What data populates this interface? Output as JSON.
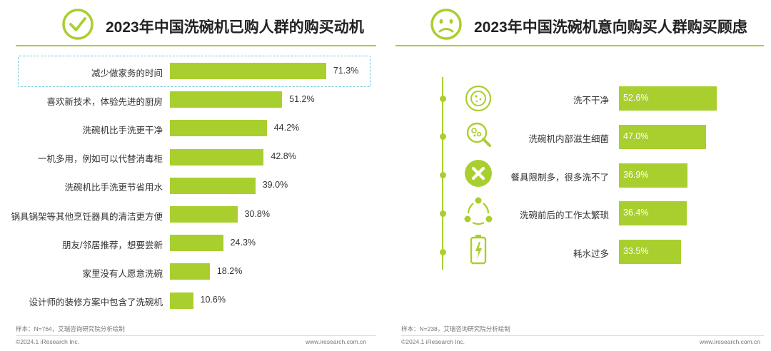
{
  "left": {
    "title": "2023年中国洗碗机已购人群的购买动机",
    "icon": "checkmark-circle-icon",
    "note": "样本：N=764，艾瑞咨询研究院分析绘制",
    "footer_copyright": "©2024.1 iResearch Inc.",
    "footer_url": "www.iresearch.com.cn"
  },
  "right": {
    "title": "2023年中国洗碗机意向购买人群购买顾虑",
    "icon": "sad-face-icon",
    "note": "样本：N=238，艾瑞咨询研究院分析绘制",
    "footer_copyright": "©2024.1 iResearch Inc.",
    "footer_url": "www.iresearch.com.cn",
    "item_icons": [
      "dirty-plate-icon",
      "bacteria-magnifier-icon",
      "cross-circle-icon",
      "cycle-arrows-icon",
      "battery-icon"
    ]
  },
  "colors": {
    "accent": "#a9cf2e",
    "highlight": "#6cc4dd"
  },
  "chart_data": [
    {
      "type": "bar",
      "orientation": "horizontal",
      "title": "2023年中国洗碗机已购人群的购买动机",
      "categories": [
        "减少做家务的时间",
        "喜欢新技术，体验先进的厨房",
        "洗碗机比手洗更干净",
        "一机多用，例如可以代替消毒柜",
        "洗碗机比手洗更节省用水",
        "锅具锅架等其他烹饪器具的清洁更方便",
        "朋友/邻居推荐，想要尝新",
        "家里没有人愿意洗碗",
        "设计师的装修方案中包含了洗碗机"
      ],
      "values": [
        71.3,
        51.2,
        44.2,
        42.8,
        39.0,
        30.8,
        24.3,
        18.2,
        10.6
      ],
      "value_labels": [
        "71.3%",
        "51.2%",
        "44.2%",
        "42.8%",
        "39.0%",
        "30.8%",
        "24.3%",
        "18.2%",
        "10.6%"
      ],
      "unit": "%",
      "highlighted_category": "减少做家务的时间"
    },
    {
      "type": "bar",
      "orientation": "horizontal",
      "title": "2023年中国洗碗机意向购买人群购买顾虑",
      "categories": [
        "洗不干净",
        "洗碗机内部滋生细菌",
        "餐具限制多，很多洗不了",
        "洗碗前后的工作太繁琐",
        "耗水过多"
      ],
      "values": [
        52.6,
        47.0,
        36.9,
        36.4,
        33.5
      ],
      "value_labels": [
        "52.6%",
        "47.0%",
        "36.9%",
        "36.4%",
        "33.5%"
      ],
      "unit": "%"
    }
  ]
}
